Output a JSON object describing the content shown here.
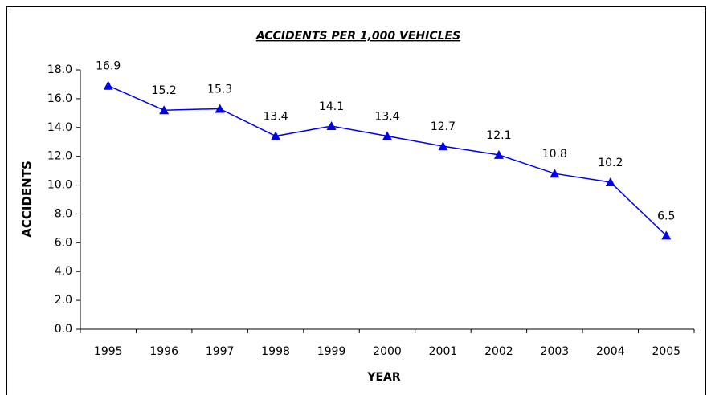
{
  "chart_data": {
    "type": "line",
    "title": "ACCIDENTS PER 1,000 VEHICLES",
    "x_label": "YEAR",
    "y_label": "ACCIDENTS",
    "categories": [
      "1995",
      "1996",
      "1997",
      "1998",
      "1999",
      "2000",
      "2001",
      "2002",
      "2003",
      "2004",
      "2005"
    ],
    "series": [
      {
        "name": "Accidents",
        "color": "#0000ee",
        "values": [
          16.9,
          15.2,
          15.3,
          13.4,
          14.1,
          13.4,
          12.7,
          12.1,
          10.8,
          10.2,
          6.5
        ]
      }
    ],
    "ylim": [
      0,
      18
    ],
    "yticks": [
      {
        "value": 0,
        "label": "0.0"
      },
      {
        "value": 2,
        "label": "2.0"
      },
      {
        "value": 4,
        "label": "4.0"
      },
      {
        "value": 6,
        "label": "6.0"
      },
      {
        "value": 8,
        "label": "8.0"
      },
      {
        "value": 10,
        "label": "10.0"
      },
      {
        "value": 12,
        "label": "12.0"
      },
      {
        "value": 14,
        "label": "14.0"
      },
      {
        "value": 16,
        "label": "16.0"
      },
      {
        "value": 18,
        "label": "18.0"
      }
    ],
    "grid": false
  }
}
